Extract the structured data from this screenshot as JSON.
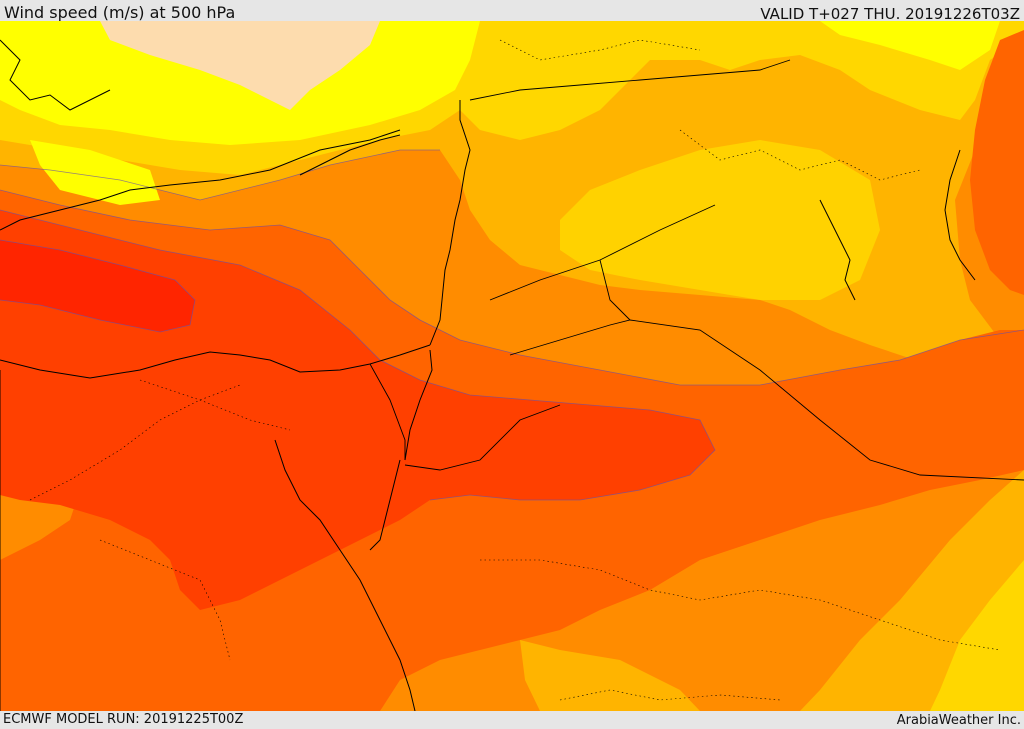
{
  "header": {
    "title": "Wind speed (m/s) at 500 hPa",
    "valid": "VALID T+027 THU. 20191226T03Z"
  },
  "footer": {
    "model_run": "ECMWF MODEL RUN: 20191225T00Z",
    "provider": "ArabiaWeather Inc."
  },
  "colors": {
    "band_0": "#fddcae",
    "band_1": "#ffff00",
    "band_2": "#ffd700",
    "band_3": "#ffb400",
    "band_4": "#ff8c00",
    "band_5": "#ff6400",
    "band_6": "#ff4000",
    "band_7": "#ff2500",
    "contour": "#6a4fa8",
    "coastline": "#000000"
  }
}
